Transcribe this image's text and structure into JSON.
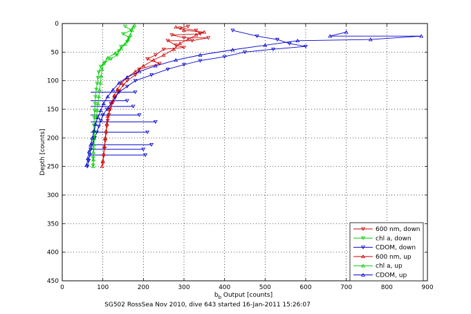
{
  "chart_data": {
    "type": "scatter",
    "title": "",
    "xlabel": {
      "main": "b",
      "sub": "b",
      "rest": " Output [counts]"
    },
    "ylabel": "Depth [counts]",
    "caption": "SG502 RossSea Nov 2010, dive 643 started 16-Jan-2011 15:26:07",
    "xlim": [
      0,
      900
    ],
    "ylim": [
      0,
      450
    ],
    "y_reversed": true,
    "grid": true,
    "legend_position": "bottom-right",
    "xticks": [
      0,
      100,
      200,
      300,
      400,
      500,
      600,
      700,
      800,
      900
    ],
    "yticks": [
      0,
      50,
      100,
      150,
      200,
      250,
      300,
      350,
      400,
      450
    ],
    "series": [
      {
        "name": "600 nm, down",
        "color": "#cc0000",
        "marker": "triangle-down",
        "points": [
          [
            290,
            8
          ],
          [
            310,
            5
          ],
          [
            330,
            12
          ],
          [
            270,
            20
          ],
          [
            300,
            25
          ],
          [
            320,
            30
          ],
          [
            280,
            38
          ],
          [
            250,
            45
          ],
          [
            300,
            42
          ],
          [
            340,
            18
          ],
          [
            260,
            30
          ],
          [
            360,
            25
          ],
          [
            230,
            55
          ],
          [
            210,
            62
          ],
          [
            240,
            70
          ],
          [
            190,
            80
          ],
          [
            180,
            90
          ],
          [
            160,
            100
          ],
          [
            150,
            108
          ],
          [
            140,
            118
          ],
          [
            130,
            128
          ],
          [
            125,
            138
          ],
          [
            118,
            150
          ],
          [
            115,
            160
          ],
          [
            112,
            170
          ],
          [
            110,
            180
          ],
          [
            108,
            192
          ],
          [
            106,
            205
          ],
          [
            104,
            218
          ],
          [
            102,
            232
          ],
          [
            100,
            245
          ]
        ]
      },
      {
        "name": "chl a, down",
        "color": "#00cc00",
        "marker": "triangle-down",
        "points": [
          [
            155,
            5
          ],
          [
            170,
            12
          ],
          [
            150,
            18
          ],
          [
            165,
            25
          ],
          [
            160,
            32
          ],
          [
            145,
            40
          ],
          [
            140,
            48
          ],
          [
            135,
            55
          ],
          [
            120,
            62
          ],
          [
            105,
            68
          ],
          [
            95,
            75
          ],
          [
            90,
            85
          ],
          [
            88,
            95
          ],
          [
            86,
            105
          ],
          [
            84,
            115
          ],
          [
            82,
            128
          ],
          [
            81,
            140
          ],
          [
            80,
            152
          ],
          [
            79,
            165
          ],
          [
            78,
            178
          ],
          [
            78,
            190
          ],
          [
            77,
            205
          ],
          [
            77,
            220
          ],
          [
            76,
            235
          ],
          [
            76,
            248
          ]
        ]
      },
      {
        "name": "CDOM, down",
        "color": "#0000cc",
        "marker": "triangle-down",
        "points": [
          [
            420,
            12
          ],
          [
            480,
            22
          ],
          [
            530,
            28
          ],
          [
            560,
            35
          ],
          [
            600,
            40
          ],
          [
            520,
            45
          ],
          [
            450,
            50
          ],
          [
            400,
            58
          ],
          [
            340,
            65
          ],
          [
            300,
            72
          ],
          [
            260,
            80
          ],
          [
            220,
            90
          ],
          [
            180,
            100
          ],
          [
            160,
            110
          ],
          [
            140,
            120
          ],
          [
            130,
            130
          ],
          [
            120,
            140
          ],
          [
            110,
            150
          ],
          [
            100,
            160
          ],
          [
            95,
            170
          ],
          [
            90,
            180
          ],
          [
            85,
            190
          ],
          [
            80,
            200
          ],
          [
            75,
            210
          ],
          [
            70,
            220
          ],
          [
            68,
            230
          ],
          [
            65,
            240
          ],
          [
            62,
            250
          ]
        ]
      },
      {
        "name": "600 nm, up",
        "color": "#cc0000",
        "marker": "triangle-up",
        "points": [
          [
            98,
            250
          ],
          [
            100,
            240
          ],
          [
            102,
            228
          ],
          [
            104,
            215
          ],
          [
            106,
            200
          ],
          [
            108,
            188
          ],
          [
            110,
            175
          ],
          [
            112,
            162
          ],
          [
            116,
            150
          ],
          [
            122,
            138
          ],
          [
            128,
            126
          ],
          [
            136,
            115
          ],
          [
            146,
            104
          ],
          [
            160,
            94
          ],
          [
            180,
            84
          ],
          [
            200,
            74
          ],
          [
            225,
            64
          ],
          [
            250,
            55
          ],
          [
            275,
            45
          ],
          [
            290,
            35
          ],
          [
            310,
            28
          ],
          [
            330,
            20
          ],
          [
            300,
            12
          ],
          [
            280,
            6
          ],
          [
            350,
            15
          ]
        ]
      },
      {
        "name": "chl a, up",
        "color": "#00cc00",
        "marker": "triangle-up",
        "points": [
          [
            76,
            250
          ],
          [
            77,
            238
          ],
          [
            77,
            225
          ],
          [
            78,
            212
          ],
          [
            79,
            200
          ],
          [
            80,
            188
          ],
          [
            82,
            176
          ],
          [
            84,
            164
          ],
          [
            86,
            152
          ],
          [
            88,
            140
          ],
          [
            90,
            128
          ],
          [
            92,
            116
          ],
          [
            94,
            104
          ],
          [
            96,
            92
          ],
          [
            98,
            80
          ],
          [
            102,
            70
          ],
          [
            112,
            60
          ],
          [
            130,
            52
          ],
          [
            145,
            44
          ],
          [
            155,
            36
          ],
          [
            162,
            28
          ],
          [
            168,
            20
          ],
          [
            172,
            12
          ],
          [
            175,
            6
          ],
          [
            178,
            3
          ]
        ]
      },
      {
        "name": "CDOM, up",
        "color": "#0000cc",
        "marker": "triangle-up",
        "points": [
          [
            60,
            248
          ],
          [
            63,
            236
          ],
          [
            66,
            224
          ],
          [
            70,
            212
          ],
          [
            74,
            200
          ],
          [
            78,
            188
          ],
          [
            82,
            176
          ],
          [
            88,
            164
          ],
          [
            95,
            152
          ],
          [
            102,
            140
          ],
          [
            112,
            128
          ],
          [
            125,
            116
          ],
          [
            140,
            104
          ],
          [
            160,
            94
          ],
          [
            190,
            84
          ],
          [
            230,
            74
          ],
          [
            280,
            64
          ],
          [
            340,
            55
          ],
          [
            420,
            46
          ],
          [
            500,
            38
          ],
          [
            580,
            30
          ],
          [
            660,
            22
          ],
          [
            700,
            15
          ],
          [
            760,
            28
          ],
          [
            885,
            22
          ]
        ]
      }
    ],
    "spikes": [
      [
        230,
        172
      ],
      [
        210,
        190
      ],
      [
        200,
        220
      ],
      [
        190,
        160
      ],
      [
        175,
        145
      ],
      [
        220,
        212
      ],
      [
        180,
        120
      ],
      [
        160,
        135
      ],
      [
        205,
        230
      ]
    ]
  }
}
